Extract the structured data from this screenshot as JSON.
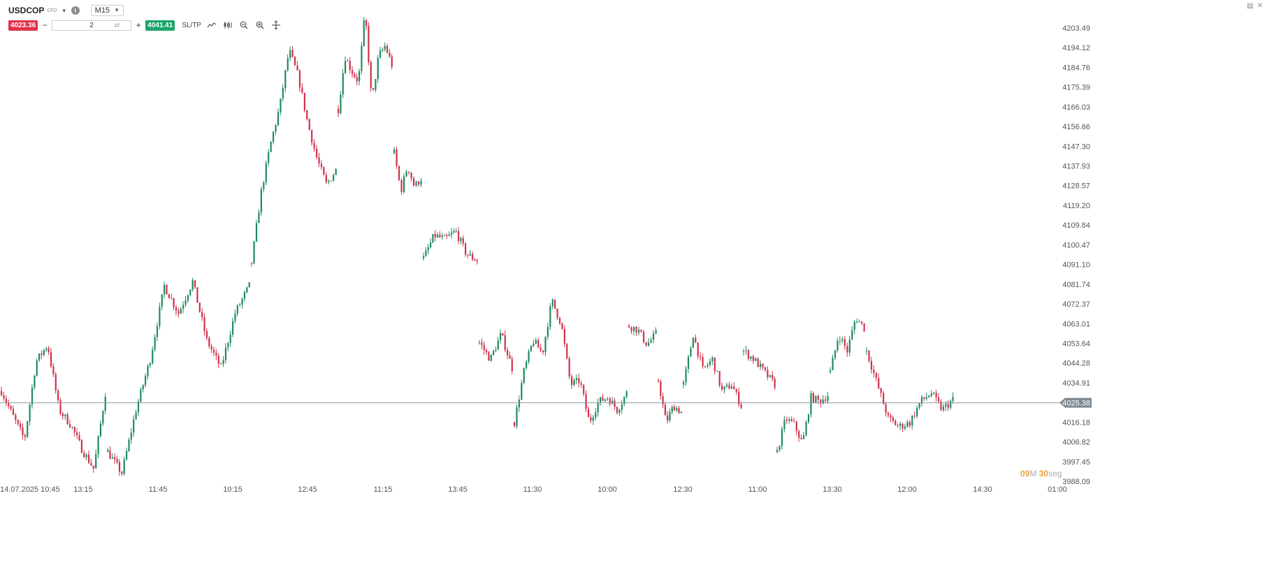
{
  "header": {
    "symbol": "USDCOP",
    "symbol_type": "CFD",
    "timeframe": "M15",
    "sell_price": "4023.36",
    "buy_price": "4041.41",
    "quantity": "2",
    "sltp_label": "SL/TP",
    "minus_label": "−",
    "plus_label": "+",
    "icons": [
      "info-icon",
      "line-chart-icon",
      "candles-icon",
      "zoom-out-icon",
      "zoom-in-icon",
      "crosshair-icon",
      "minimize-icon",
      "close-icon"
    ]
  },
  "countdown": {
    "minutes": "09",
    "m_label": "M",
    "seconds": "30",
    "s_label": "seg"
  },
  "chart_data": {
    "type": "candlestick",
    "ylim": [
      3988.09,
      4208.0
    ],
    "y_ticks": [
      "4203.49",
      "4194.12",
      "4184.76",
      "4175.39",
      "4166.03",
      "4156.66",
      "4147.30",
      "4137.93",
      "4128.57",
      "4119.20",
      "4109.84",
      "4100.47",
      "4091.10",
      "4081.74",
      "4072.37",
      "4063.01",
      "4053.64",
      "4044.28",
      "4034.91",
      "4025.38",
      "4016.18",
      "4006.82",
      "3997.45",
      "3988.09"
    ],
    "x_ticks": [
      "14.07.2025 10:45",
      "13:15",
      "11:45",
      "10:15",
      "12:45",
      "11:15",
      "13:45",
      "11:30",
      "10:00",
      "12:30",
      "11:00",
      "13:30",
      "12:00",
      "14:30",
      "01:00"
    ],
    "current_price": "4025.38",
    "colors": {
      "up": "#1e8a5e",
      "down": "#d0304a",
      "price_line": "#8f9aa3",
      "axis_text": "#555555"
    },
    "segments": [
      {
        "x_start": 0,
        "x_end": 152,
        "path": [
          4031,
          4019,
          4008,
          4045,
          4053,
          4022,
          4015,
          4003,
          3994,
          4030
        ]
      },
      {
        "x_start": 152,
        "x_end": 358,
        "path": [
          4002,
          3992,
          4022,
          4046,
          4081,
          4068,
          4083,
          4055,
          4042,
          4068,
          4081
        ]
      },
      {
        "x_start": 358,
        "x_end": 482,
        "path": [
          4092,
          4125,
          4148,
          4166,
          4193,
          4180,
          4158,
          4141,
          4129,
          4136
        ]
      },
      {
        "x_start": 482,
        "x_end": 562,
        "path": [
          4165,
          4190,
          4183,
          4178,
          4211,
          4168,
          4190,
          4195,
          4186
        ]
      },
      {
        "x_start": 562,
        "x_end": 604,
        "path": [
          4144,
          4126,
          4138,
          4128,
          4132
        ]
      },
      {
        "x_start": 604,
        "x_end": 684,
        "path": [
          4094,
          4105,
          4103,
          4107,
          4096,
          4093
        ]
      },
      {
        "x_start": 684,
        "x_end": 734,
        "path": [
          4054,
          4046,
          4058,
          4042
        ]
      },
      {
        "x_start": 734,
        "x_end": 898,
        "path": [
          4016,
          4040,
          4055,
          4049,
          4074,
          4063,
          4034,
          4036,
          4016,
          4026,
          4028,
          4022,
          4030
        ]
      },
      {
        "x_start": 898,
        "x_end": 940,
        "path": [
          4062,
          4060,
          4053,
          4058
        ]
      },
      {
        "x_start": 940,
        "x_end": 976,
        "path": [
          4036,
          4016,
          4024,
          4021
        ]
      },
      {
        "x_start": 976,
        "x_end": 1062,
        "path": [
          4034,
          4058,
          4041,
          4046,
          4031,
          4034,
          4024
        ]
      },
      {
        "x_start": 1062,
        "x_end": 1110,
        "path": [
          4050,
          4046,
          4040,
          4034
        ]
      },
      {
        "x_start": 1110,
        "x_end": 1186,
        "path": [
          4002,
          4018,
          4015,
          4006,
          4028,
          4026,
          4029
        ]
      },
      {
        "x_start": 1186,
        "x_end": 1238,
        "path": [
          4040,
          4058,
          4050,
          4066,
          4061
        ]
      },
      {
        "x_start": 1238,
        "x_end": 1365,
        "path": [
          4050,
          4034,
          4018,
          4014,
          4016,
          4026,
          4030,
          4022,
          4027
        ]
      }
    ]
  }
}
